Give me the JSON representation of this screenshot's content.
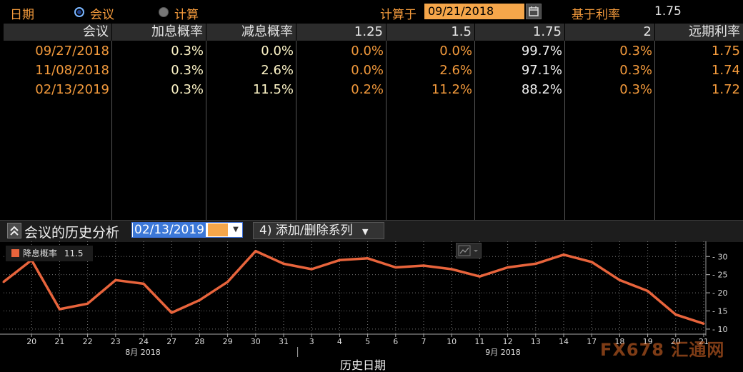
{
  "topbar": {
    "date_label": "日期",
    "radio_meeting": "会议",
    "radio_calc": "计算",
    "calc_at_label": "计算于",
    "calc_date": "09/21/2018",
    "base_rate_label": "基于利率",
    "base_rate_value": "1.75"
  },
  "table": {
    "headers": [
      "会议",
      "加息概率",
      "减息概率",
      "1.25",
      "1.5",
      "1.75",
      "2",
      "远期利率"
    ],
    "rows": [
      [
        "09/27/2018",
        "0.3%",
        "0.0%",
        "0.0%",
        "0.0%",
        "99.7%",
        "0.3%",
        "1.75"
      ],
      [
        "11/08/2018",
        "0.3%",
        "2.6%",
        "0.0%",
        "2.6%",
        "97.1%",
        "0.3%",
        "1.74"
      ],
      [
        "02/13/2019",
        "0.3%",
        "11.5%",
        "0.2%",
        "11.2%",
        "88.2%",
        "0.3%",
        "1.72"
      ]
    ]
  },
  "history": {
    "title": "会议的历史分析",
    "date": "02/13/2019",
    "series_button": "添加/删除系列",
    "series_button_prefix": "4)"
  },
  "colors": {
    "accent_orange": "#f39a3c",
    "line": "#e8643c"
  },
  "chart_data": {
    "type": "line",
    "xlabel": "历史日期",
    "ylim": [
      9,
      33
    ],
    "yticks": [
      10,
      15,
      20,
      25,
      30
    ],
    "legend": "top-left",
    "grid": true,
    "series": [
      {
        "name": "降息概率",
        "current": "11.5",
        "x": [
          "8/17",
          "8/20",
          "8/21",
          "8/22",
          "8/23",
          "8/24",
          "8/27",
          "8/28",
          "8/29",
          "8/30",
          "8/31",
          "9/3",
          "9/4",
          "9/5",
          "9/6",
          "9/7",
          "9/10",
          "9/11",
          "9/12",
          "9/13",
          "9/14",
          "9/17",
          "9/18",
          "9/19",
          "9/20",
          "9/21"
        ],
        "values": [
          23,
          29,
          15.5,
          17,
          23.5,
          22.5,
          14.5,
          18,
          23,
          31.5,
          28,
          26.5,
          29,
          29.5,
          27,
          27.5,
          26.5,
          24.5,
          27,
          28,
          30.5,
          28.5,
          23.5,
          20.5,
          14,
          11.5
        ]
      }
    ],
    "xtick_labels": [
      "20",
      "21",
      "22",
      "23",
      "24",
      "27",
      "28",
      "29",
      "30",
      "31",
      "3",
      "4",
      "5",
      "6",
      "7",
      "10",
      "11",
      "12",
      "13",
      "14",
      "17",
      "18",
      "19",
      "20",
      "21"
    ],
    "month_labels": [
      "8月 2018",
      "9月 2018"
    ]
  },
  "watermark": "FX678 汇通网"
}
